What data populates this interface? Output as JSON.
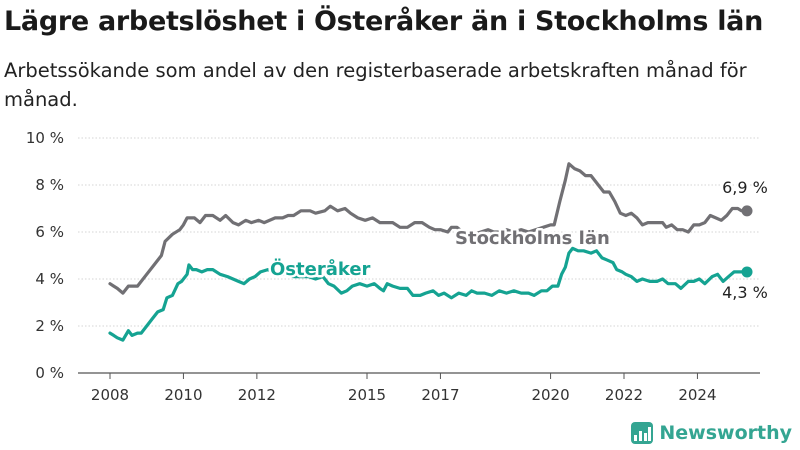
{
  "header": {
    "title": "Lägre arbetslöshet i Österåker än i Stockholms län",
    "subtitle": "Arbetssökande som andel av den registerbaserade arbetskraften månad för månad."
  },
  "brand": {
    "name": "Newsworthy",
    "icon": "newsworthy-logo-icon",
    "color": "#34a592"
  },
  "chart_data": {
    "type": "line",
    "title": "Lägre arbetslöshet i Österåker än i Stockholms län",
    "subtitle": "Arbetssökande som andel av den registerbaserade arbetskraften månad för månad.",
    "xlabel": "",
    "ylabel": "",
    "xlim": [
      2008,
      2025.5
    ],
    "ylim": [
      0,
      10
    ],
    "x_ticks": [
      "2008",
      "2010",
      "2012",
      "2015",
      "2017",
      "2020",
      "2022",
      "2024"
    ],
    "y_ticks": [
      "0 %",
      "2 %",
      "4 %",
      "6 %",
      "8 %",
      "10 %"
    ],
    "grid": "horizontal",
    "legend": "inline labels",
    "series": [
      {
        "name": "Stockholms län",
        "color": "#717074",
        "end_label": "6,9 %",
        "points": [
          [
            2008.0,
            3.8
          ],
          [
            2008.1,
            3.7
          ],
          [
            2008.2,
            3.6
          ],
          [
            2008.35,
            3.4
          ],
          [
            2008.5,
            3.7
          ],
          [
            2008.75,
            3.7
          ],
          [
            2009.0,
            4.2
          ],
          [
            2009.2,
            4.6
          ],
          [
            2009.4,
            5.0
          ],
          [
            2009.5,
            5.6
          ],
          [
            2009.7,
            5.9
          ],
          [
            2009.9,
            6.1
          ],
          [
            2010.0,
            6.3
          ],
          [
            2010.1,
            6.6
          ],
          [
            2010.3,
            6.6
          ],
          [
            2010.45,
            6.4
          ],
          [
            2010.6,
            6.7
          ],
          [
            2010.8,
            6.7
          ],
          [
            2011.0,
            6.5
          ],
          [
            2011.15,
            6.7
          ],
          [
            2011.35,
            6.4
          ],
          [
            2011.5,
            6.3
          ],
          [
            2011.7,
            6.5
          ],
          [
            2011.85,
            6.4
          ],
          [
            2012.05,
            6.5
          ],
          [
            2012.2,
            6.4
          ],
          [
            2012.5,
            6.6
          ],
          [
            2012.7,
            6.6
          ],
          [
            2012.85,
            6.7
          ],
          [
            2013.0,
            6.7
          ],
          [
            2013.2,
            6.9
          ],
          [
            2013.45,
            6.9
          ],
          [
            2013.6,
            6.8
          ],
          [
            2013.85,
            6.9
          ],
          [
            2014.0,
            7.1
          ],
          [
            2014.2,
            6.9
          ],
          [
            2014.4,
            7.0
          ],
          [
            2014.55,
            6.8
          ],
          [
            2014.75,
            6.6
          ],
          [
            2014.95,
            6.5
          ],
          [
            2015.15,
            6.6
          ],
          [
            2015.35,
            6.4
          ],
          [
            2015.5,
            6.4
          ],
          [
            2015.7,
            6.4
          ],
          [
            2015.9,
            6.2
          ],
          [
            2016.1,
            6.2
          ],
          [
            2016.3,
            6.4
          ],
          [
            2016.5,
            6.4
          ],
          [
            2016.7,
            6.2
          ],
          [
            2016.85,
            6.1
          ],
          [
            2017.0,
            6.1
          ],
          [
            2017.2,
            6.0
          ],
          [
            2017.3,
            6.2
          ],
          [
            2017.45,
            6.2
          ],
          [
            2017.6,
            6.0
          ],
          [
            2017.75,
            6.0
          ],
          [
            2017.9,
            5.9
          ],
          [
            2018.1,
            6.0
          ],
          [
            2018.3,
            6.1
          ],
          [
            2018.45,
            6.0
          ],
          [
            2018.6,
            6.0
          ],
          [
            2018.8,
            6.1
          ],
          [
            2019.0,
            6.0
          ],
          [
            2019.2,
            6.1
          ],
          [
            2019.4,
            6.0
          ],
          [
            2019.6,
            6.1
          ],
          [
            2019.8,
            6.2
          ],
          [
            2020.0,
            6.3
          ],
          [
            2020.1,
            6.3
          ],
          [
            2020.25,
            7.3
          ],
          [
            2020.4,
            8.2
          ],
          [
            2020.5,
            8.9
          ],
          [
            2020.65,
            8.7
          ],
          [
            2020.8,
            8.6
          ],
          [
            2020.95,
            8.4
          ],
          [
            2021.1,
            8.4
          ],
          [
            2021.3,
            8.0
          ],
          [
            2021.45,
            7.7
          ],
          [
            2021.6,
            7.7
          ],
          [
            2021.75,
            7.3
          ],
          [
            2021.9,
            6.8
          ],
          [
            2022.05,
            6.7
          ],
          [
            2022.2,
            6.8
          ],
          [
            2022.35,
            6.6
          ],
          [
            2022.5,
            6.3
          ],
          [
            2022.65,
            6.4
          ],
          [
            2022.85,
            6.4
          ],
          [
            2023.05,
            6.4
          ],
          [
            2023.15,
            6.2
          ],
          [
            2023.3,
            6.3
          ],
          [
            2023.45,
            6.1
          ],
          [
            2023.6,
            6.1
          ],
          [
            2023.75,
            6.0
          ],
          [
            2023.9,
            6.3
          ],
          [
            2024.05,
            6.3
          ],
          [
            2024.2,
            6.4
          ],
          [
            2024.35,
            6.7
          ],
          [
            2024.5,
            6.6
          ],
          [
            2024.65,
            6.5
          ],
          [
            2024.8,
            6.7
          ],
          [
            2024.95,
            7.0
          ],
          [
            2025.1,
            7.0
          ],
          [
            2025.2,
            6.9
          ],
          [
            2025.35,
            6.9
          ]
        ]
      },
      {
        "name": "Österåker",
        "color": "#15a392",
        "end_label": "4,3 %",
        "points": [
          [
            2008.0,
            1.7
          ],
          [
            2008.1,
            1.6
          ],
          [
            2008.2,
            1.5
          ],
          [
            2008.35,
            1.4
          ],
          [
            2008.5,
            1.8
          ],
          [
            2008.6,
            1.6
          ],
          [
            2008.75,
            1.7
          ],
          [
            2008.85,
            1.7
          ],
          [
            2009.0,
            2.0
          ],
          [
            2009.15,
            2.3
          ],
          [
            2009.3,
            2.6
          ],
          [
            2009.45,
            2.7
          ],
          [
            2009.55,
            3.2
          ],
          [
            2009.7,
            3.3
          ],
          [
            2009.85,
            3.8
          ],
          [
            2009.95,
            3.9
          ],
          [
            2010.1,
            4.2
          ],
          [
            2010.15,
            4.6
          ],
          [
            2010.25,
            4.4
          ],
          [
            2010.35,
            4.4
          ],
          [
            2010.5,
            4.3
          ],
          [
            2010.65,
            4.4
          ],
          [
            2010.8,
            4.4
          ],
          [
            2011.0,
            4.2
          ],
          [
            2011.2,
            4.1
          ],
          [
            2011.35,
            4.0
          ],
          [
            2011.5,
            3.9
          ],
          [
            2011.65,
            3.8
          ],
          [
            2011.8,
            4.0
          ],
          [
            2011.95,
            4.1
          ],
          [
            2012.1,
            4.3
          ],
          [
            2012.3,
            4.4
          ],
          [
            2012.45,
            4.3
          ],
          [
            2012.6,
            4.2
          ],
          [
            2012.8,
            4.2
          ],
          [
            2013.0,
            4.1
          ],
          [
            2013.2,
            4.1
          ],
          [
            2013.4,
            4.1
          ],
          [
            2013.6,
            4.0
          ],
          [
            2013.8,
            4.1
          ],
          [
            2013.95,
            3.8
          ],
          [
            2014.1,
            3.7
          ],
          [
            2014.3,
            3.4
          ],
          [
            2014.45,
            3.5
          ],
          [
            2014.6,
            3.7
          ],
          [
            2014.8,
            3.8
          ],
          [
            2015.0,
            3.7
          ],
          [
            2015.2,
            3.8
          ],
          [
            2015.35,
            3.6
          ],
          [
            2015.45,
            3.5
          ],
          [
            2015.55,
            3.8
          ],
          [
            2015.7,
            3.7
          ],
          [
            2015.9,
            3.6
          ],
          [
            2016.1,
            3.6
          ],
          [
            2016.25,
            3.3
          ],
          [
            2016.45,
            3.3
          ],
          [
            2016.6,
            3.4
          ],
          [
            2016.8,
            3.5
          ],
          [
            2016.95,
            3.3
          ],
          [
            2017.1,
            3.4
          ],
          [
            2017.3,
            3.2
          ],
          [
            2017.5,
            3.4
          ],
          [
            2017.7,
            3.3
          ],
          [
            2017.85,
            3.5
          ],
          [
            2018.0,
            3.4
          ],
          [
            2018.2,
            3.4
          ],
          [
            2018.4,
            3.3
          ],
          [
            2018.6,
            3.5
          ],
          [
            2018.8,
            3.4
          ],
          [
            2019.0,
            3.5
          ],
          [
            2019.2,
            3.4
          ],
          [
            2019.4,
            3.4
          ],
          [
            2019.55,
            3.3
          ],
          [
            2019.75,
            3.5
          ],
          [
            2019.9,
            3.5
          ],
          [
            2020.05,
            3.7
          ],
          [
            2020.2,
            3.7
          ],
          [
            2020.3,
            4.2
          ],
          [
            2020.4,
            4.5
          ],
          [
            2020.5,
            5.1
          ],
          [
            2020.6,
            5.3
          ],
          [
            2020.75,
            5.2
          ],
          [
            2020.9,
            5.2
          ],
          [
            2021.1,
            5.1
          ],
          [
            2021.25,
            5.2
          ],
          [
            2021.4,
            4.9
          ],
          [
            2021.55,
            4.8
          ],
          [
            2021.7,
            4.7
          ],
          [
            2021.8,
            4.4
          ],
          [
            2021.95,
            4.3
          ],
          [
            2022.05,
            4.2
          ],
          [
            2022.2,
            4.1
          ],
          [
            2022.35,
            3.9
          ],
          [
            2022.5,
            4.0
          ],
          [
            2022.7,
            3.9
          ],
          [
            2022.9,
            3.9
          ],
          [
            2023.05,
            4.0
          ],
          [
            2023.2,
            3.8
          ],
          [
            2023.4,
            3.8
          ],
          [
            2023.55,
            3.6
          ],
          [
            2023.75,
            3.9
          ],
          [
            2023.9,
            3.9
          ],
          [
            2024.05,
            4.0
          ],
          [
            2024.2,
            3.8
          ],
          [
            2024.4,
            4.1
          ],
          [
            2024.55,
            4.2
          ],
          [
            2024.7,
            3.9
          ],
          [
            2024.85,
            4.1
          ],
          [
            2025.0,
            4.3
          ],
          [
            2025.15,
            4.3
          ],
          [
            2025.3,
            4.3
          ],
          [
            2025.35,
            4.3
          ]
        ]
      }
    ]
  }
}
